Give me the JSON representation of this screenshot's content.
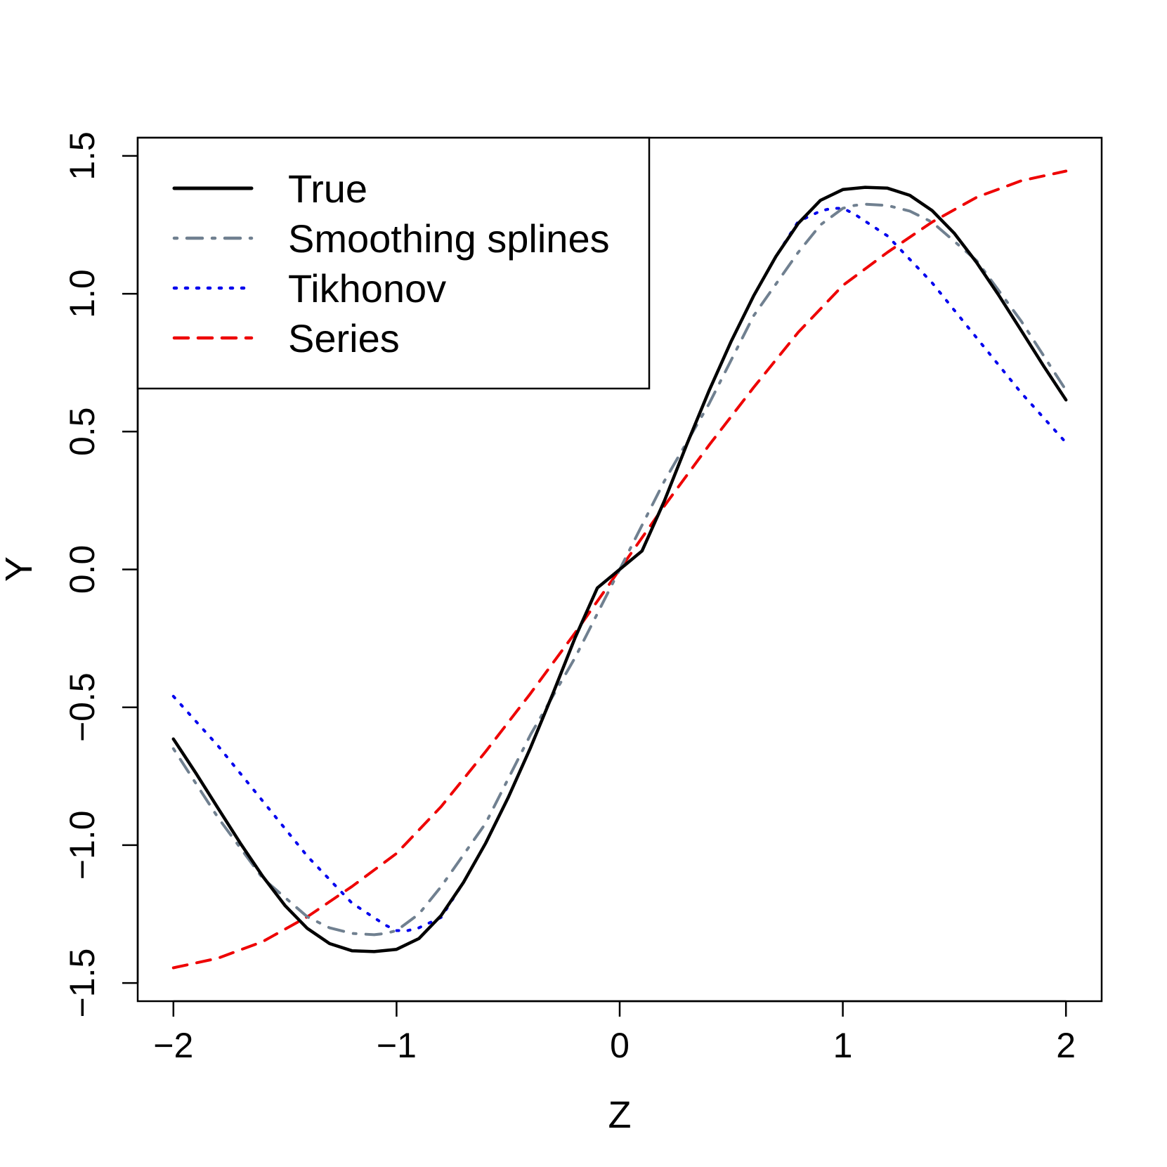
{
  "chart_data": {
    "type": "line",
    "title": "",
    "xlabel": "Z",
    "ylabel": "Y",
    "xlim": [
      -2.16,
      2.16
    ],
    "ylim": [
      -1.566,
      1.566
    ],
    "x_ticks": [
      -2,
      -1,
      0,
      1,
      2
    ],
    "x_tick_labels": [
      "−2",
      "−1",
      "0",
      "1",
      "2"
    ],
    "y_ticks": [
      -1.5,
      -1.0,
      -0.5,
      0.0,
      0.5,
      1.0,
      1.5
    ],
    "y_tick_labels": [
      "−1.5",
      "−1.0",
      "−0.5",
      "0.0",
      "0.5",
      "1.0",
      "1.5"
    ],
    "grid": false,
    "legend_position": "top-left",
    "series": [
      {
        "name": "True",
        "color": "#000000",
        "dash": "solid",
        "x": [
          -2,
          -1.9,
          -1.8,
          -1.7,
          -1.6,
          -1.5,
          -1.4,
          -1.3,
          -1.2,
          -1.1,
          -1,
          -0.9,
          -0.8,
          -0.7,
          -0.6,
          -0.5,
          -0.4,
          -0.3,
          -0.2,
          -0.1,
          0,
          0.1,
          0.2,
          0.3,
          0.4,
          0.5,
          0.6,
          0.7,
          0.8,
          0.9,
          1,
          1.1,
          1.2,
          1.3,
          1.4,
          1.5,
          1.6,
          1.7,
          1.8,
          1.9,
          2
        ],
        "y": [
          -0.615,
          -0.738,
          -0.866,
          -0.993,
          -1.113,
          -1.219,
          -1.302,
          -1.357,
          -1.383,
          -1.386,
          -1.378,
          -1.339,
          -1.255,
          -1.135,
          -0.992,
          -0.828,
          -0.647,
          -0.452,
          -0.248,
          -0.067,
          0,
          0.067,
          0.248,
          0.452,
          0.647,
          0.828,
          0.992,
          1.135,
          1.255,
          1.339,
          1.378,
          1.386,
          1.383,
          1.357,
          1.302,
          1.219,
          1.113,
          0.993,
          0.866,
          0.738,
          0.615
        ]
      },
      {
        "name": "Smoothing splines",
        "color": "#708090",
        "dash": "dotdash",
        "x": [
          -2,
          -1.8,
          -1.6,
          -1.4,
          -1.3,
          -1.2,
          -1.1,
          -1.05,
          -1,
          -0.9,
          -0.8,
          -0.6,
          -0.4,
          -0.2,
          0,
          0.2,
          0.4,
          0.6,
          0.8,
          0.9,
          1,
          1.05,
          1.1,
          1.2,
          1.3,
          1.4,
          1.6,
          1.8,
          2
        ],
        "y": [
          -0.65,
          -0.9,
          -1.12,
          -1.26,
          -1.3,
          -1.32,
          -1.325,
          -1.32,
          -1.31,
          -1.25,
          -1.15,
          -0.92,
          -0.6,
          -0.32,
          0,
          0.32,
          0.6,
          0.92,
          1.15,
          1.25,
          1.31,
          1.32,
          1.325,
          1.32,
          1.3,
          1.26,
          1.12,
          0.9,
          0.65
        ]
      },
      {
        "name": "Tikhonov",
        "color": "#0000ee",
        "dash": "dotted",
        "x": [
          -2,
          -1.8,
          -1.6,
          -1.4,
          -1.2,
          -1.05,
          -1,
          -0.95,
          -0.9,
          -0.8,
          -0.7,
          -0.6,
          -0.5,
          -0.4,
          -0.3,
          -0.2,
          -0.1,
          0,
          0.1,
          0.2,
          0.3,
          0.4,
          0.5,
          0.6,
          0.7,
          0.8,
          0.9,
          0.95,
          1,
          1.05,
          1.2,
          1.4,
          1.6,
          1.8,
          2
        ],
        "y": [
          -0.46,
          -0.64,
          -0.84,
          -1.04,
          -1.21,
          -1.29,
          -1.31,
          -1.31,
          -1.3,
          -1.262,
          -1.135,
          -0.992,
          -0.828,
          -0.647,
          -0.452,
          -0.248,
          -0.067,
          0,
          0.067,
          0.248,
          0.452,
          0.647,
          0.828,
          0.992,
          1.135,
          1.262,
          1.3,
          1.31,
          1.31,
          1.29,
          1.21,
          1.04,
          0.84,
          0.64,
          0.46
        ]
      },
      {
        "name": "Series",
        "color": "#ee0000",
        "dash": "dashed",
        "x": [
          -2,
          -1.8,
          -1.6,
          -1.4,
          -1.2,
          -1,
          -0.8,
          -0.6,
          -0.4,
          -0.2,
          0,
          0.2,
          0.4,
          0.6,
          0.8,
          1,
          1.2,
          1.4,
          1.6,
          1.8,
          2
        ],
        "y": [
          -1.445,
          -1.41,
          -1.35,
          -1.26,
          -1.15,
          -1.03,
          -0.86,
          -0.66,
          -0.45,
          -0.23,
          0,
          0.23,
          0.45,
          0.66,
          0.86,
          1.03,
          1.15,
          1.26,
          1.35,
          1.41,
          1.445
        ]
      }
    ]
  }
}
